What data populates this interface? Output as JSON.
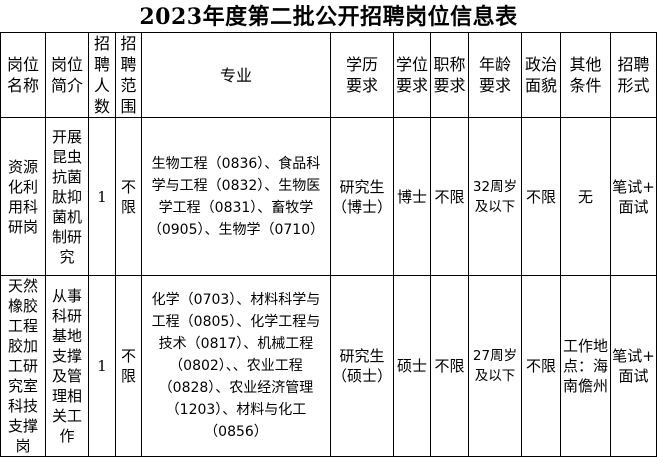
{
  "title": "2023年度第二批公开招聘岗位信息表",
  "headers": [
    "岗位\n名称",
    "岗位\n简介",
    "招\n聘\n人\n数",
    "招\n聘\n范\n围",
    "专业",
    "学历\n要求",
    "学位\n要求",
    "职称\n要求",
    "年龄\n要求",
    "政治\n面貌",
    "其他\n条件",
    "招聘\n形式"
  ],
  "rows": [
    {
      "name": "资源\n化利\n用科\n研岗",
      "intro": "开展\n昆虫\n抗菌\n肽抑\n菌机\n制研\n究",
      "count": "1",
      "scope": "不\n限",
      "major": "生物工程（0836）、食品科\n学与工程（0832）、生物医\n学工程（0831）、畜牧学\n（0905）、生物学（0710）",
      "education": "研究生\n（博士）",
      "degree": "博士",
      "title_req": "不限",
      "age": "32周岁\n及以下",
      "political": "不限",
      "other": "无",
      "form": "笔试+\n面试"
    },
    {
      "name": "天然\n橡胶\n工程\n胶加\n工研\n究室\n科技\n支撑\n岗",
      "intro": "从事\n科研\n基地\n支撑\n及管\n理相\n关工\n作",
      "count": "1",
      "scope": "不\n限",
      "major": "化学（0703）、材料科学与\n工程（0805）、化学工程与\n技术（0817）、机械工程\n（0802）、、农业工程\n（0828）、农业经济管理\n（1203）、材料与化工\n（0856）",
      "education": "研究生\n（硕士）",
      "degree": "硕士",
      "title_req": "不限",
      "age": "27周岁\n及以下",
      "political": "不限",
      "other": "工作地\n点：海\n南儋州",
      "form": "笔试+\n面试"
    }
  ]
}
